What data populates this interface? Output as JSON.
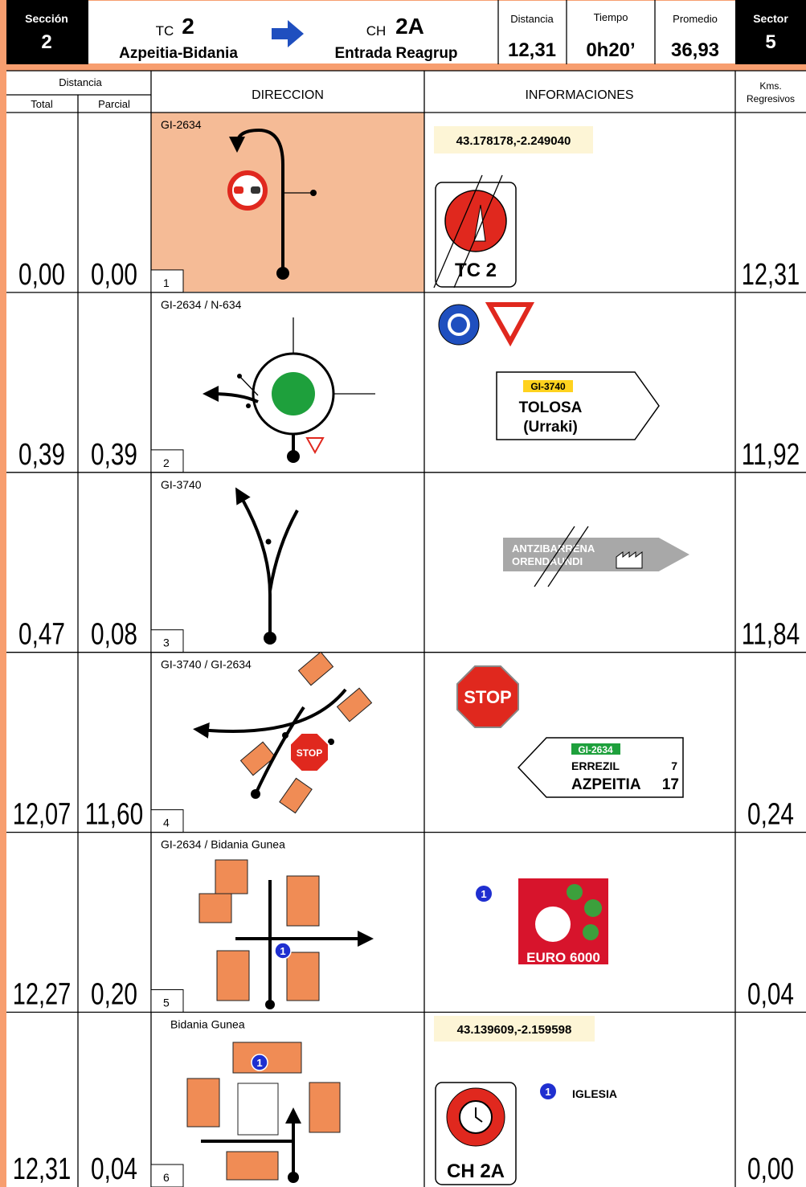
{
  "header": {
    "section_label": "Sección",
    "section": "2",
    "tc_prefix": "TC",
    "tc_number": "2",
    "tc_name": "Azpeitia-Bidania",
    "ch_prefix": "CH",
    "ch_number": "2A",
    "ch_name": "Entrada Reagrup",
    "distance_label": "Distancia",
    "distance": "12,31",
    "time_label": "Tiempo",
    "time": "0h20’",
    "average_label": "Promedio",
    "average": "36,93",
    "sector_label": "Sector",
    "sector": "5"
  },
  "columns": {
    "distance": "Distancia",
    "total": "Total",
    "partial": "Parcial",
    "direction": "DIRECCION",
    "info": "INFORMACIONES",
    "kms_1": "Kms.",
    "kms_2": "Regresivos"
  },
  "rows": [
    {
      "number": "1",
      "total": "0,00",
      "partial": "0,00",
      "remaining": "12,31",
      "road": "GI-2634",
      "coordinates": "43.178178,-2.249040",
      "sign_text": "TC 2"
    },
    {
      "number": "2",
      "total": "0,39",
      "partial": "0,39",
      "remaining": "11,92",
      "road": "GI-2634 / N-634",
      "sign_code": "GI-3740",
      "sign_lines": [
        "TOLOSA",
        "(Urraki)"
      ]
    },
    {
      "number": "3",
      "total": "0,47",
      "partial": "0,08",
      "remaining": "11,84",
      "road": "GI-3740",
      "sign_lines": [
        "ANTZIBARRENA",
        "ORENDAUNDI"
      ]
    },
    {
      "number": "4",
      "total": "12,07",
      "partial": "11,60",
      "remaining": "0,24",
      "road": "GI-3740 / GI-2634",
      "diagram_stop": "STOP",
      "info_stop": "STOP",
      "sign_code": "GI-2634",
      "destinations": [
        {
          "name": "ERREZIL",
          "km": "7"
        },
        {
          "name": "AZPEITIA",
          "km": "17"
        }
      ]
    },
    {
      "number": "5",
      "total": "12,27",
      "partial": "0,20",
      "remaining": "0,04",
      "road": "GI-2634 / Bidania Gunea",
      "diagram_marker": "1",
      "info_marker": "1",
      "logo_text": "EURO 6000"
    },
    {
      "number": "6",
      "total": "12,31",
      "partial": "0,04",
      "remaining": "0,00",
      "road": "Bidania Gunea",
      "coordinates": "43.139609,-2.159598",
      "diagram_marker": "1",
      "info_marker": "1",
      "info_label": "IGLESIA",
      "sign_text": "CH 2A"
    }
  ]
}
